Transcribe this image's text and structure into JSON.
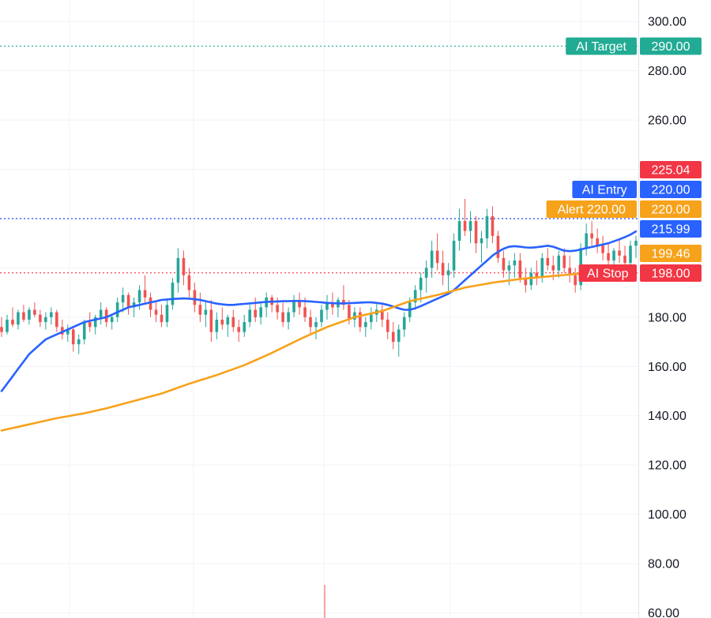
{
  "colors": {
    "up": "#26a69a",
    "down": "#ef5350",
    "ma_fast": "#2962ff",
    "ma_slow": "#f7a21b",
    "target": "#22ab94",
    "stop": "#f23645",
    "entry": "#2962ff",
    "alert": "#f7a21b",
    "grid": "#f0f3fa",
    "axis_text": "#131722"
  },
  "chart_data": {
    "type": "candlestick",
    "title": "",
    "xlabel": "",
    "ylabel": "",
    "ylim": [
      60,
      305
    ],
    "y_ticks": [
      "60.00",
      "80.00",
      "100.00",
      "120.00",
      "140.00",
      "160.00",
      "180.00",
      "260.00",
      "280.00",
      "300.00"
    ],
    "grid": true,
    "candles": [
      [
        176,
        180,
        172,
        174
      ],
      [
        174,
        181,
        173,
        179
      ],
      [
        179,
        184,
        176,
        177
      ],
      [
        177,
        183,
        175,
        182
      ],
      [
        182,
        185,
        178,
        179
      ],
      [
        179,
        184,
        177,
        183
      ],
      [
        183,
        186,
        180,
        181
      ],
      [
        181,
        183,
        176,
        178
      ],
      [
        178,
        182,
        175,
        180
      ],
      [
        180,
        184,
        177,
        182
      ],
      [
        182,
        183,
        174,
        176
      ],
      [
        176,
        179,
        171,
        173
      ],
      [
        173,
        177,
        170,
        175
      ],
      [
        175,
        176,
        166,
        169
      ],
      [
        169,
        173,
        165,
        171
      ],
      [
        171,
        179,
        169,
        178
      ],
      [
        178,
        182,
        174,
        176
      ],
      [
        176,
        181,
        173,
        180
      ],
      [
        180,
        186,
        177,
        183
      ],
      [
        183,
        184,
        176,
        178
      ],
      [
        178,
        181,
        175,
        180
      ],
      [
        180,
        188,
        178,
        186
      ],
      [
        186,
        192,
        182,
        189
      ],
      [
        189,
        190,
        181,
        184
      ],
      [
        184,
        188,
        180,
        186
      ],
      [
        186,
        193,
        183,
        191
      ],
      [
        191,
        197,
        186,
        188
      ],
      [
        188,
        190,
        180,
        183
      ],
      [
        183,
        186,
        178,
        181
      ],
      [
        181,
        185,
        176,
        178
      ],
      [
        178,
        187,
        176,
        185
      ],
      [
        185,
        196,
        183,
        194
      ],
      [
        194,
        208,
        190,
        204
      ],
      [
        204,
        207,
        193,
        197
      ],
      [
        197,
        200,
        188,
        191
      ],
      [
        191,
        194,
        182,
        185
      ],
      [
        185,
        190,
        178,
        181
      ],
      [
        181,
        186,
        176,
        183
      ],
      [
        183,
        187,
        170,
        174
      ],
      [
        174,
        182,
        171,
        179
      ],
      [
        179,
        184,
        175,
        177
      ],
      [
        177,
        181,
        172,
        180
      ],
      [
        180,
        183,
        174,
        176
      ],
      [
        176,
        179,
        170,
        174
      ],
      [
        174,
        181,
        172,
        178
      ],
      [
        178,
        185,
        176,
        183
      ],
      [
        183,
        188,
        178,
        180
      ],
      [
        180,
        186,
        177,
        184
      ],
      [
        184,
        190,
        180,
        188
      ],
      [
        188,
        189,
        182,
        185
      ],
      [
        185,
        188,
        179,
        182
      ],
      [
        182,
        186,
        176,
        178
      ],
      [
        178,
        184,
        175,
        182
      ],
      [
        182,
        189,
        180,
        187
      ],
      [
        187,
        190,
        181,
        184
      ],
      [
        184,
        188,
        178,
        180
      ],
      [
        180,
        183,
        173,
        176
      ],
      [
        176,
        180,
        171,
        178
      ],
      [
        178,
        185,
        176,
        183
      ],
      [
        183,
        189,
        179,
        186
      ],
      [
        186,
        190,
        181,
        184
      ],
      [
        184,
        188,
        180,
        187
      ],
      [
        187,
        193,
        183,
        185
      ],
      [
        185,
        187,
        177,
        179
      ],
      [
        179,
        184,
        176,
        182
      ],
      [
        182,
        184,
        174,
        176
      ],
      [
        176,
        180,
        172,
        178
      ],
      [
        178,
        184,
        175,
        181
      ],
      [
        181,
        186,
        178,
        183
      ],
      [
        183,
        185,
        176,
        179
      ],
      [
        179,
        182,
        171,
        174
      ],
      [
        174,
        178,
        167,
        170
      ],
      [
        170,
        177,
        164,
        175
      ],
      [
        175,
        182,
        172,
        180
      ],
      [
        180,
        188,
        178,
        186
      ],
      [
        186,
        193,
        183,
        191
      ],
      [
        191,
        198,
        186,
        196
      ],
      [
        196,
        203,
        190,
        200
      ],
      [
        200,
        211,
        196,
        207
      ],
      [
        207,
        214,
        199,
        202
      ],
      [
        202,
        207,
        193,
        197
      ],
      [
        197,
        202,
        190,
        199
      ],
      [
        199,
        214,
        196,
        211
      ],
      [
        211,
        224,
        207,
        219
      ],
      [
        219,
        228,
        213,
        215
      ],
      [
        215,
        223,
        210,
        219
      ],
      [
        219,
        221,
        206,
        210
      ],
      [
        210,
        215,
        202,
        212
      ],
      [
        212,
        224,
        208,
        221
      ],
      [
        221,
        225,
        210,
        213
      ],
      [
        213,
        215,
        202,
        204
      ],
      [
        204,
        207,
        196,
        199
      ],
      [
        199,
        203,
        193,
        201
      ],
      [
        201,
        206,
        196,
        203
      ],
      [
        203,
        206,
        194,
        196
      ],
      [
        196,
        200,
        190,
        193
      ],
      [
        193,
        200,
        191,
        198
      ],
      [
        198,
        203,
        193,
        196
      ],
      [
        196,
        206,
        194,
        204
      ],
      [
        204,
        208,
        199,
        201
      ],
      [
        201,
        205,
        195,
        199
      ],
      [
        199,
        207,
        196,
        205
      ],
      [
        205,
        208,
        198,
        200
      ],
      [
        200,
        205,
        194,
        197
      ],
      [
        197,
        200,
        190,
        193
      ],
      [
        193,
        210,
        191,
        208
      ],
      [
        208,
        218,
        205,
        214
      ],
      [
        214,
        219,
        209,
        212
      ],
      [
        212,
        216,
        206,
        209
      ],
      [
        209,
        213,
        203,
        206
      ],
      [
        206,
        210,
        200,
        203
      ],
      [
        203,
        208,
        199,
        207
      ],
      [
        207,
        212,
        202,
        205
      ],
      [
        205,
        209,
        199,
        202
      ],
      [
        202,
        211,
        200,
        209
      ],
      [
        209,
        213,
        204,
        211
      ]
    ],
    "series": [
      {
        "values": [
          150,
          153,
          156,
          159,
          162,
          165,
          167,
          169,
          171,
          172,
          173,
          174,
          175,
          176,
          177,
          178,
          178.5,
          179,
          179.5,
          180,
          181,
          182,
          183,
          184,
          184.5,
          185,
          185.5,
          186,
          186.5,
          187,
          187.2,
          187.4,
          187.5,
          187.6,
          187.5,
          187.3,
          187,
          186.5,
          186,
          185.5,
          185.2,
          185,
          185,
          185.2,
          185.4,
          185.6,
          185.8,
          186,
          186.2,
          186.3,
          186.4,
          186.5,
          186.5,
          186.6,
          186.6,
          186.5,
          186.4,
          186.2,
          186,
          185.8,
          185.7,
          185.6,
          185.6,
          185.7,
          185.8,
          185.9,
          186,
          186,
          185.8,
          185.5,
          185,
          184.3,
          183.6,
          183,
          183,
          183.6,
          184.5,
          185.5,
          186.5,
          187.5,
          188.5,
          189.5,
          191,
          193,
          195,
          197,
          199,
          201,
          203,
          205,
          206.5,
          207.8,
          208.6,
          208.8,
          208.6,
          208.3,
          208.2,
          208.4,
          208.7,
          209,
          208.6,
          207.8,
          207,
          206.8,
          207,
          207.5,
          208,
          208.5,
          209,
          209.5,
          210,
          210.8,
          211.6,
          212.5,
          213.5,
          214.8
        ]
      },
      {
        "values": [
          134,
          134.5,
          135,
          135.5,
          136,
          136.5,
          137,
          137.5,
          138,
          138.5,
          139,
          139.4,
          139.8,
          140.2,
          140.6,
          141,
          141.5,
          142,
          142.5,
          143,
          143.6,
          144.2,
          144.8,
          145.4,
          146,
          146.6,
          147.2,
          147.8,
          148.4,
          149,
          149.8,
          150.6,
          151.4,
          152.2,
          153,
          153.7,
          154.4,
          155.1,
          155.8,
          156.5,
          157.3,
          158.1,
          158.9,
          159.7,
          160.5,
          161.5,
          162.5,
          163.5,
          164.5,
          165.5,
          166.6,
          167.7,
          168.8,
          169.9,
          171,
          172,
          173,
          174,
          175,
          176,
          176.8,
          177.6,
          178.4,
          179.2,
          180,
          180.5,
          181,
          181.5,
          182,
          182.5,
          183.3,
          184.1,
          184.9,
          185.7,
          186.5,
          187,
          187.5,
          188,
          188.5,
          189,
          189.6,
          190.2,
          190.8,
          191.4,
          192,
          192.4,
          192.8,
          193.2,
          193.6,
          194,
          194.3,
          194.6,
          194.9,
          195.2,
          195.5,
          195.7,
          195.9,
          196.1,
          196.3,
          196.5,
          196.7,
          196.9,
          197.1,
          197.3,
          197.5,
          197.7,
          197.9,
          198.1,
          198.3,
          198.5,
          198.7,
          198.9,
          199.1,
          199.3,
          199.4,
          199.5
        ]
      }
    ],
    "levels": [
      {
        "label": "AI Target",
        "price": 290,
        "value_label": "290.00",
        "style": "target"
      },
      {
        "label": "AI Entry",
        "price": 220,
        "value_label": "220.00",
        "style": "entry"
      },
      {
        "label": "Alert 220.00",
        "price": 220,
        "value_label": "220.00",
        "style": "alert"
      },
      {
        "label": "AI Stop",
        "price": 198,
        "value_label": "198.00",
        "style": "stop"
      }
    ],
    "price_tags": [
      {
        "price": 225.04,
        "value_label": "225.04",
        "color": "#f23645"
      },
      {
        "price": 215.99,
        "value_label": "215.99",
        "color": "#2962ff"
      },
      {
        "price": 199.46,
        "value_label": "199.46",
        "color": "#f7a21b"
      }
    ]
  }
}
